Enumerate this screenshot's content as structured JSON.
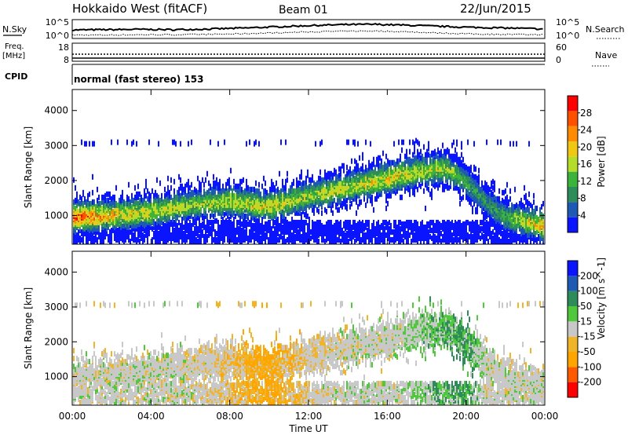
{
  "header": {
    "title": "Hokkaido West (fitACF)",
    "beam": "Beam 01",
    "date": "22/Jun/2015"
  },
  "noise_panel": {
    "left_label": "N.Sky",
    "right_label": "N.Search",
    "left_ticks": [
      "10^5",
      "10^0"
    ],
    "right_ticks": [
      "10^5",
      "10^0"
    ]
  },
  "freq_panel": {
    "left_label_1": "Freq.",
    "left_label_2": "[MHz]",
    "left_ticks": [
      "18",
      "8"
    ],
    "right_label": "Nave",
    "right_ticks": [
      "60",
      "0"
    ]
  },
  "cpid": {
    "label": "CPID",
    "mode": "normal (fast stereo) 153"
  },
  "x_axis": {
    "label": "Time UT",
    "ticks": [
      "00:00",
      "04:00",
      "08:00",
      "12:00",
      "16:00",
      "20:00",
      "00:00"
    ]
  },
  "colors": {
    "power": [
      "#0a14ff",
      "#1e5ab4",
      "#2d8c5a",
      "#3cb43c",
      "#b4dc28",
      "#f0c814",
      "#ff8c00",
      "#ff5000",
      "#ff0000"
    ],
    "velocity": [
      "#ff0000",
      "#ff5a00",
      "#ffa500",
      "#f0b428",
      "#c8c8c8",
      "#50c83c",
      "#2d8c5a",
      "#1e5ab4",
      "#0a14ff"
    ]
  },
  "chart_data": [
    {
      "type": "line",
      "title": "",
      "series": [
        {
          "name": "N.Sky",
          "y": [
            2.2,
            2.3,
            2.4,
            2.3,
            2.5,
            2.8,
            3.2,
            3.6,
            3.9,
            4.0,
            3.7,
            3.3,
            3.0,
            2.8,
            2.5
          ]
        },
        {
          "name": "N.Search",
          "y": [
            0.6,
            0.6,
            0.7,
            0.7,
            0.8,
            1.0,
            1.3,
            1.6,
            1.8,
            1.9,
            1.6,
            1.2,
            0.9,
            0.8,
            0.7
          ]
        }
      ],
      "x_hours": [
        0,
        1.7,
        3.4,
        5.1,
        6.9,
        8.6,
        10.3,
        12,
        13.7,
        15.4,
        17.1,
        18.9,
        20.6,
        22.3,
        24
      ],
      "ylim_log10": [
        0,
        5
      ],
      "ylabel": "N.Sky",
      "y2label": "N.Search"
    },
    {
      "type": "line",
      "series": [
        {
          "name": "Freq.",
          "values": [
            11,
            11
          ]
        },
        {
          "name": "Nave",
          "values": [
            30,
            30
          ]
        }
      ],
      "x_hours": [
        0,
        24
      ],
      "ylim": [
        8,
        18
      ],
      "y2lim": [
        0,
        60
      ]
    },
    {
      "type": "heatmap",
      "ylabel": "Slant Range [km]",
      "xlabel": "Time UT",
      "ylim": [
        180,
        4600
      ],
      "yticks": [
        1000,
        2000,
        3000,
        4000
      ],
      "xlim_hours": [
        0,
        24
      ],
      "colorbar": {
        "label": "Power [dB]",
        "ticks": [
          4,
          8,
          12,
          16,
          20,
          24,
          28
        ],
        "range": [
          0,
          32
        ]
      },
      "echo_band": {
        "hours": [
          0,
          2,
          4,
          6,
          8,
          10,
          12,
          14,
          16,
          17.5,
          19,
          20,
          21,
          22,
          24
        ],
        "center_km": [
          900,
          950,
          1050,
          1250,
          1350,
          1200,
          1500,
          1750,
          2000,
          2200,
          2300,
          1900,
          1300,
          900,
          650
        ],
        "peak_power_db": [
          28,
          22,
          18,
          16,
          18,
          20,
          16,
          18,
          20,
          18,
          16,
          12,
          10,
          12,
          24
        ]
      }
    },
    {
      "type": "heatmap",
      "ylabel": "Slant Range [km]",
      "xlabel": "Time UT",
      "ylim": [
        180,
        4600
      ],
      "yticks": [
        1000,
        2000,
        3000,
        4000
      ],
      "xlim_hours": [
        0,
        24
      ],
      "colorbar": {
        "label": "Velocity [m s^-1]",
        "ticks": [
          -200,
          -100,
          -50,
          -15,
          15,
          50,
          100,
          200
        ],
        "range": [
          -250,
          250
        ]
      },
      "echo_band": {
        "hours": [
          0,
          2,
          4,
          6,
          8,
          10,
          12,
          14,
          16,
          17.5,
          19,
          20,
          21,
          22,
          24
        ],
        "center_km": [
          900,
          950,
          1050,
          1250,
          1350,
          1200,
          1500,
          1750,
          2000,
          2200,
          2300,
          1900,
          1300,
          900,
          650
        ],
        "dominant_velocity": [
          0,
          0,
          0,
          0,
          -30,
          -60,
          -20,
          0,
          0,
          20,
          40,
          60,
          0,
          0,
          0
        ]
      }
    }
  ]
}
